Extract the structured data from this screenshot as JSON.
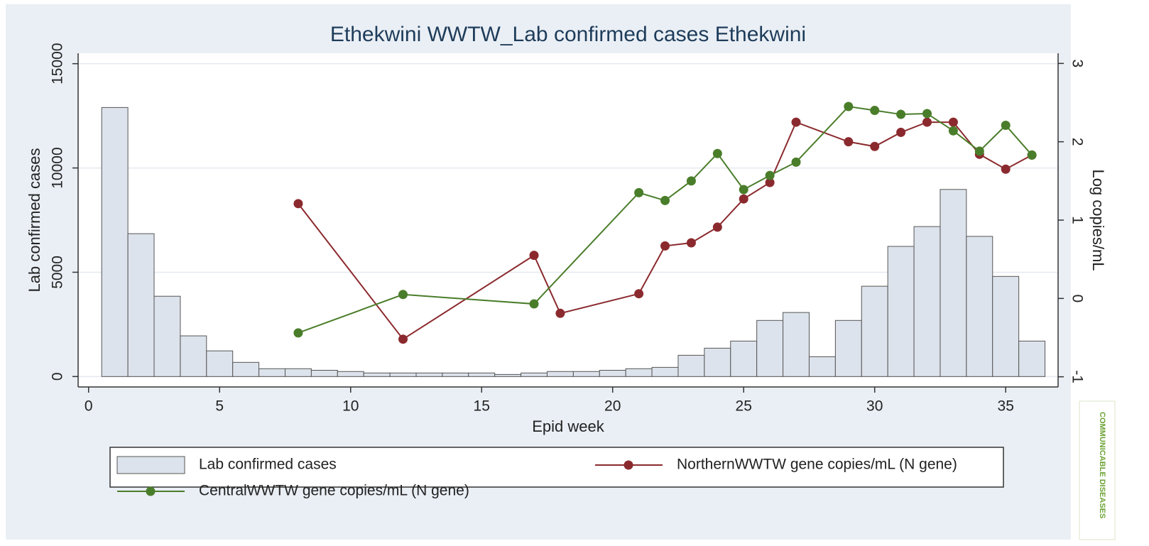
{
  "chart_data": {
    "type": "bar",
    "title": "Ethekwini WWTW_Lab confirmed cases Ethekwini",
    "xlabel": "Epid week",
    "ylabel": "Lab confirmed cases",
    "y2label": "Log copies/mL",
    "xlim": [
      -0.4,
      37
    ],
    "xticks": [
      0,
      5,
      10,
      15,
      20,
      25,
      30,
      35
    ],
    "ylim": [
      -500,
      15500
    ],
    "yticks": [
      0,
      5000,
      10000,
      15000
    ],
    "y2lim": [
      -1.13,
      3.13
    ],
    "y2ticks": [
      -1,
      0,
      1,
      2,
      3
    ],
    "grid": true,
    "series": [
      {
        "name": "Lab confirmed cases",
        "type": "bar",
        "color": "#dde3ec",
        "x": [
          1,
          2,
          3,
          4,
          5,
          6,
          7,
          8,
          9,
          10,
          11,
          12,
          13,
          14,
          15,
          16,
          17,
          18,
          19,
          20,
          21,
          22,
          23,
          24,
          25,
          26,
          27,
          28,
          29,
          30,
          31,
          32,
          33,
          34,
          35,
          36
        ],
        "values": [
          12900,
          6850,
          3850,
          1950,
          1230,
          680,
          375,
          375,
          300,
          240,
          170,
          170,
          170,
          170,
          170,
          100,
          170,
          240,
          240,
          300,
          375,
          440,
          1020,
          1360,
          1700,
          2690,
          3070,
          950,
          2690,
          4330,
          6240,
          7190,
          8970,
          6720,
          4800,
          1700
        ]
      },
      {
        "name": "NorthernWWTW gene copies/mL (N gene)",
        "type": "line",
        "axis": "y2",
        "color": "#8b2a2e",
        "x": [
          8,
          12,
          17,
          18,
          21,
          22,
          23,
          24,
          25,
          26,
          27,
          29,
          30,
          31,
          32,
          33,
          34,
          35,
          36
        ],
        "values": [
          1.21,
          -0.52,
          0.55,
          -0.19,
          0.06,
          0.67,
          0.71,
          0.91,
          1.27,
          1.48,
          2.25,
          2.0,
          1.94,
          2.12,
          2.25,
          2.25,
          1.84,
          1.65,
          1.83
        ]
      },
      {
        "name": "CentralWWTW gene copies/mL (N gene)",
        "type": "line",
        "axis": "y2",
        "color": "#4a7d2a",
        "x": [
          8,
          12,
          17,
          21,
          22,
          23,
          24,
          25,
          26,
          27,
          29,
          30,
          31,
          32,
          33,
          34,
          35,
          36
        ],
        "values": [
          -0.44,
          0.05,
          -0.07,
          1.35,
          1.25,
          1.5,
          1.85,
          1.39,
          1.57,
          1.74,
          2.45,
          2.4,
          2.35,
          2.36,
          2.14,
          1.88,
          2.21,
          1.83
        ]
      }
    ]
  },
  "logo": "COMMUNICABLE DISEASES"
}
